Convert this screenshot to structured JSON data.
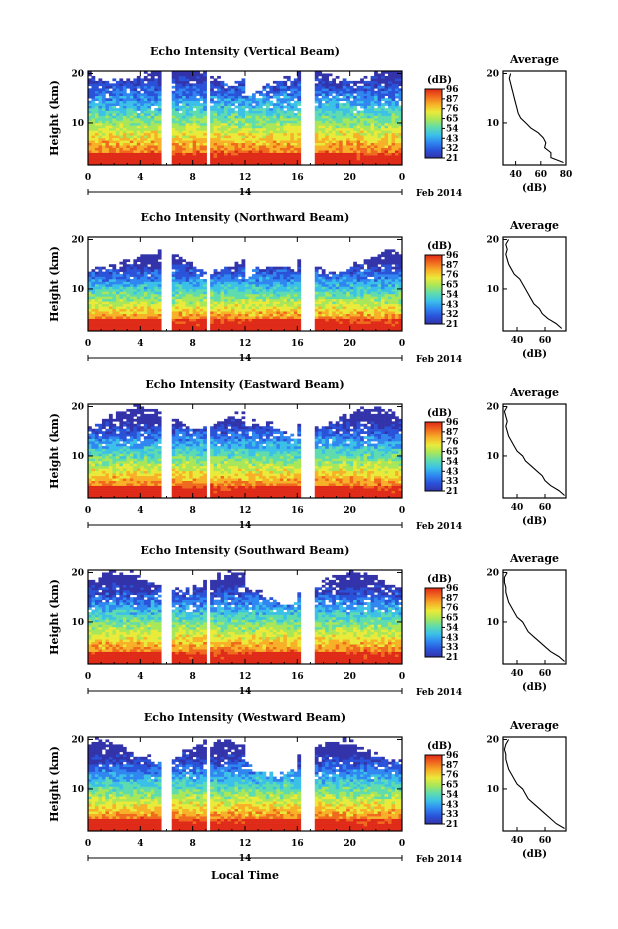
{
  "figure": {
    "xlabel": "Local Time",
    "date_label": "Feb 2014",
    "day_label": "14"
  },
  "colorbar": {
    "unit": "(dB)",
    "colors": [
      "#3333aa",
      "#2a52d9",
      "#2f86f0",
      "#3bc0e8",
      "#5fdcae",
      "#a8e65a",
      "#eaea3a",
      "#f7b028",
      "#f06a1e",
      "#e02a18"
    ]
  },
  "average": {
    "title": "Average",
    "xlabel": "(dB)"
  },
  "chart_data": [
    {
      "type": "heatmap",
      "title": "Echo Intensity (Vertical Beam)",
      "xlabel": "",
      "ylabel": "Height (km)",
      "x_ticks": [
        "0",
        "4",
        "8",
        "12",
        "16",
        "20",
        "0"
      ],
      "xlim": [
        0,
        24
      ],
      "y_ticks": [
        "10",
        "20"
      ],
      "ylim": [
        1.5,
        20.5
      ],
      "colorbar_ticks": [
        "96",
        "87",
        "76",
        "65",
        "54",
        "43",
        "32",
        "21"
      ],
      "colorbar_range": [
        21,
        96
      ],
      "data_gaps_hours": [
        [
          5.6,
          6.3
        ],
        [
          9.0,
          9.4
        ],
        [
          16.3,
          17.3
        ]
      ],
      "echo_top_km": 19.5,
      "average_profile": {
        "xticks": [
          "40",
          "60",
          "80"
        ],
        "xlim": [
          30,
          80
        ],
        "height_km": [
          2,
          3,
          4,
          5,
          6,
          7,
          8,
          9,
          10,
          11,
          12,
          13,
          14,
          15,
          16,
          17,
          18,
          19,
          20
        ],
        "db": [
          78,
          68,
          68,
          63,
          64,
          62,
          58,
          52,
          48,
          44,
          42,
          41,
          40,
          39,
          38,
          37,
          36,
          35,
          36
        ]
      }
    },
    {
      "type": "heatmap",
      "title": "Echo Intensity (Northward Beam)",
      "xlabel": "",
      "ylabel": "Height (km)",
      "x_ticks": [
        "0",
        "4",
        "8",
        "12",
        "16",
        "20",
        "0"
      ],
      "xlim": [
        0,
        24
      ],
      "y_ticks": [
        "10",
        "20"
      ],
      "ylim": [
        1.5,
        20.5
      ],
      "colorbar_ticks": [
        "96",
        "87",
        "76",
        "65",
        "54",
        "43",
        "32",
        "21"
      ],
      "colorbar_range": [
        21,
        96
      ],
      "data_gaps_hours": [
        [
          5.6,
          6.3
        ],
        [
          9.0,
          9.4
        ],
        [
          16.3,
          17.3
        ]
      ],
      "echo_top_km": 15.0,
      "average_profile": {
        "xticks": [
          "40",
          "60"
        ],
        "xlim": [
          30,
          75
        ],
        "height_km": [
          2,
          3,
          4,
          5,
          6,
          7,
          8,
          9,
          10,
          11,
          12,
          13,
          14,
          15,
          16,
          17,
          18,
          19,
          20
        ],
        "db": [
          72,
          68,
          62,
          58,
          56,
          52,
          50,
          48,
          46,
          44,
          42,
          38,
          36,
          34,
          33,
          32,
          33,
          32,
          34
        ]
      }
    },
    {
      "type": "heatmap",
      "title": "Echo Intensity (Eastward Beam)",
      "xlabel": "",
      "ylabel": "Height (km)",
      "x_ticks": [
        "0",
        "4",
        "8",
        "12",
        "16",
        "20",
        "0"
      ],
      "xlim": [
        0,
        24
      ],
      "y_ticks": [
        "10",
        "20"
      ],
      "ylim": [
        1.5,
        20.5
      ],
      "colorbar_ticks": [
        "96",
        "87",
        "76",
        "65",
        "54",
        "43",
        "33",
        "21"
      ],
      "colorbar_range": [
        21,
        96
      ],
      "data_gaps_hours": [
        [
          5.6,
          6.3
        ],
        [
          9.0,
          9.4
        ],
        [
          16.3,
          17.3
        ]
      ],
      "echo_top_km": 17.0,
      "average_profile": {
        "xticks": [
          "40",
          "60"
        ],
        "xlim": [
          30,
          75
        ],
        "height_km": [
          2,
          3,
          4,
          5,
          6,
          7,
          8,
          9,
          10,
          11,
          12,
          13,
          14,
          15,
          16,
          17,
          18,
          19,
          20
        ],
        "db": [
          74,
          70,
          64,
          60,
          58,
          54,
          50,
          46,
          44,
          40,
          38,
          36,
          34,
          33,
          32,
          33,
          32,
          31,
          33
        ]
      }
    },
    {
      "type": "heatmap",
      "title": "Echo Intensity (Southward Beam)",
      "xlabel": "",
      "ylabel": "Height (km)",
      "x_ticks": [
        "0",
        "4",
        "8",
        "12",
        "16",
        "20",
        "0"
      ],
      "xlim": [
        0,
        24
      ],
      "y_ticks": [
        "10",
        "20"
      ],
      "ylim": [
        1.5,
        20.5
      ],
      "colorbar_ticks": [
        "96",
        "87",
        "76",
        "65",
        "54",
        "43",
        "33",
        "21"
      ],
      "colorbar_range": [
        21,
        96
      ],
      "data_gaps_hours": [
        [
          5.6,
          6.3
        ],
        [
          9.0,
          9.4
        ],
        [
          16.3,
          17.3
        ]
      ],
      "echo_top_km": 17.5,
      "average_profile": {
        "xticks": [
          "40",
          "60"
        ],
        "xlim": [
          30,
          75
        ],
        "height_km": [
          2,
          3,
          4,
          5,
          6,
          7,
          8,
          9,
          10,
          11,
          12,
          13,
          14,
          15,
          16,
          17,
          18,
          19,
          20
        ],
        "db": [
          74,
          70,
          64,
          60,
          56,
          52,
          48,
          46,
          44,
          40,
          38,
          36,
          34,
          33,
          32,
          32,
          31,
          31,
          33
        ]
      }
    },
    {
      "type": "heatmap",
      "title": "Echo Intensity (Westward Beam)",
      "xlabel": "",
      "ylabel": "Height (km)",
      "x_ticks": [
        "0",
        "4",
        "8",
        "12",
        "16",
        "20",
        "0"
      ],
      "xlim": [
        0,
        24
      ],
      "y_ticks": [
        "10",
        "20"
      ],
      "ylim": [
        1.5,
        20.5
      ],
      "colorbar_ticks": [
        "96",
        "87",
        "76",
        "65",
        "54",
        "43",
        "33",
        "21"
      ],
      "colorbar_range": [
        21,
        96
      ],
      "data_gaps_hours": [
        [
          5.6,
          6.3
        ],
        [
          9.0,
          9.4
        ],
        [
          16.3,
          17.3
        ]
      ],
      "echo_top_km": 17.0,
      "average_profile": {
        "xticks": [
          "40",
          "60"
        ],
        "xlim": [
          30,
          75
        ],
        "height_km": [
          2,
          3,
          4,
          5,
          6,
          7,
          8,
          9,
          10,
          11,
          12,
          13,
          14,
          15,
          16,
          17,
          18,
          19,
          20
        ],
        "db": [
          74,
          68,
          64,
          60,
          56,
          52,
          48,
          46,
          44,
          40,
          38,
          36,
          34,
          33,
          32,
          32,
          31,
          32,
          34
        ]
      }
    }
  ]
}
